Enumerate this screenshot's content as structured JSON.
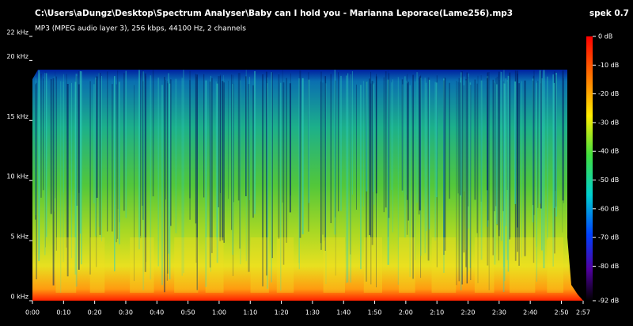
{
  "chart_data": {
    "type": "spectrogram",
    "title": "C:\\Users\\aDungz\\Desktop\\Spectrum Analyser\\Baby can I hold you - Marianna Leporace(Lame256).mp3",
    "subtitle": "MP3 (MPEG audio layer 3), 256 kbps, 44100 Hz, 2 channels",
    "app_label": "spek 0.7",
    "xlim": [
      0,
      177
    ],
    "xticks": [
      {
        "value": 0,
        "label": "0:00"
      },
      {
        "value": 10,
        "label": "0:10"
      },
      {
        "value": 20,
        "label": "0:20"
      },
      {
        "value": 30,
        "label": "0:30"
      },
      {
        "value": 40,
        "label": "0:40"
      },
      {
        "value": 50,
        "label": "0:50"
      },
      {
        "value": 60,
        "label": "1:00"
      },
      {
        "value": 70,
        "label": "1:10"
      },
      {
        "value": 80,
        "label": "1:20"
      },
      {
        "value": 90,
        "label": "1:30"
      },
      {
        "value": 100,
        "label": "1:40"
      },
      {
        "value": 110,
        "label": "1:50"
      },
      {
        "value": 120,
        "label": "2:00"
      },
      {
        "value": 130,
        "label": "2:10"
      },
      {
        "value": 140,
        "label": "2:20"
      },
      {
        "value": 150,
        "label": "2:30"
      },
      {
        "value": 160,
        "label": "2:40"
      },
      {
        "value": 170,
        "label": "2:50"
      },
      {
        "value": 177,
        "label": "2:57"
      }
    ],
    "ylim": [
      0,
      22
    ],
    "yticks": [
      {
        "value": 0,
        "label": "0 kHz"
      },
      {
        "value": 5,
        "label": "5 kHz"
      },
      {
        "value": 10,
        "label": "10 kHz"
      },
      {
        "value": 15,
        "label": "15 kHz"
      },
      {
        "value": 20,
        "label": "20 kHz"
      },
      {
        "value": 22,
        "label": "22 kHz"
      }
    ],
    "zlim": [
      -92,
      0
    ],
    "zticks": [
      {
        "value": 0,
        "label": "0 dB"
      },
      {
        "value": -10,
        "label": "-10 dB"
      },
      {
        "value": -20,
        "label": "-20 dB"
      },
      {
        "value": -30,
        "label": "-30 dB"
      },
      {
        "value": -40,
        "label": "-40 dB"
      },
      {
        "value": -50,
        "label": "-50 dB"
      },
      {
        "value": -60,
        "label": "-60 dB"
      },
      {
        "value": -70,
        "label": "-70 dB"
      },
      {
        "value": -80,
        "label": "-80 dB"
      },
      {
        "value": -92,
        "label": "-92 dB"
      }
    ]
  }
}
